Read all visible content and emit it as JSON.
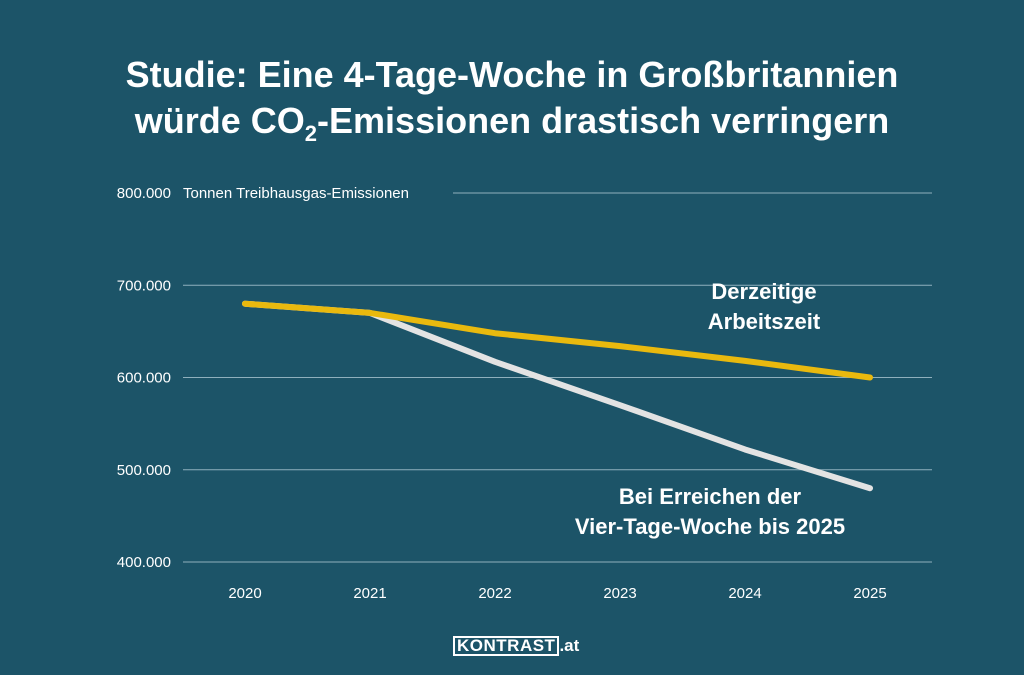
{
  "title": {
    "line1": "Studie: Eine 4-Tage-Woche in Großbritannien",
    "line2_pre": "würde CO",
    "line2_sub": "2",
    "line2_post": "-Emissionen drastisch verringern"
  },
  "logo": {
    "boxed": "KONTRAST",
    "suffix": ".at"
  },
  "colors": {
    "background": "#1c5468",
    "current": "#e9b90e",
    "fourday": "#e3e3e3",
    "grid": "#8fb0bd"
  },
  "chart_data": {
    "type": "line",
    "title": "Studie: Eine 4-Tage-Woche in Großbritannien würde CO2-Emissionen drastisch verringern",
    "unit_label": "Tonnen Treibhausgas-Emissionen",
    "x": [
      "2020",
      "2021",
      "2022",
      "2023",
      "2024",
      "2025"
    ],
    "ylim": [
      400000,
      800000
    ],
    "yticks": [
      400000,
      500000,
      600000,
      700000,
      800000
    ],
    "ytick_labels": [
      "400.000",
      "500.000",
      "600.000",
      "700.000",
      "800.000"
    ],
    "grid": true,
    "series": [
      {
        "name": "Derzeitige Arbeitszeit",
        "label_lines": [
          "Derzeitige",
          "Arbeitszeit"
        ],
        "color": "#e9b90e",
        "values": [
          680000,
          670000,
          648000,
          634000,
          618000,
          600000
        ]
      },
      {
        "name": "Bei Erreichen der Vier-Tage-Woche bis 2025",
        "label_lines": [
          "Bei Erreichen der",
          "Vier-Tage-Woche bis 2025"
        ],
        "color": "#e3e3e3",
        "values": [
          680000,
          670000,
          617000,
          570000,
          522000,
          480000
        ]
      }
    ]
  }
}
